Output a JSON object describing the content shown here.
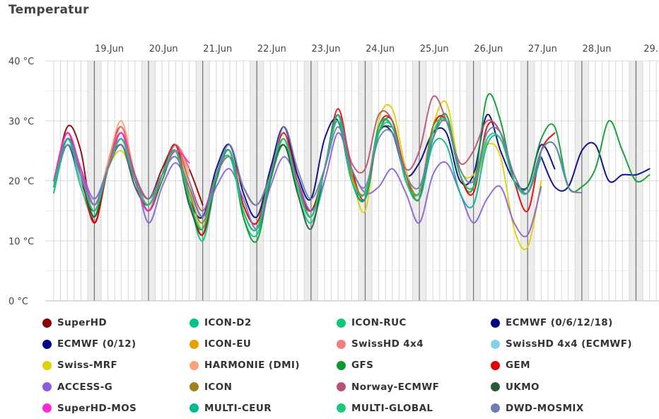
{
  "chart_data": {
    "type": "line",
    "title": "Temperatur",
    "x_tick_labels": [
      "19.Jun",
      "20.Jun",
      "21.Jun",
      "22.Jun",
      "23.Jun",
      "24.Jun",
      "25.Jun",
      "26.Jun",
      "27.Jun",
      "28.Jun",
      "29."
    ],
    "y_tick_labels": [
      "0 °C",
      "10 °C",
      "20 °C",
      "30 °C",
      "40 °C"
    ],
    "ylim": [
      0,
      40
    ],
    "xlim_days": [
      18.0,
      29.2
    ],
    "x_unit": "day of June",
    "grid": true,
    "legend_position": "bottom",
    "series": [
      {
        "name": "SuperHD",
        "color": "#8b0000",
        "x": [
          18.0,
          18.25,
          18.5,
          18.75,
          19.0,
          19.25,
          19.5,
          19.75,
          20.0,
          20.25,
          20.5,
          20.75
        ],
        "y": [
          19,
          29,
          25,
          13,
          23,
          29,
          21,
          17,
          22,
          26,
          22,
          16
        ]
      },
      {
        "name": "ICON-D2",
        "color": "#00c48c",
        "x": [
          18.0,
          18.25,
          18.5,
          18.75,
          19.0,
          19.25,
          19.5,
          19.75,
          20.0,
          20.25,
          20.5,
          20.75,
          21.0,
          21.25,
          21.5,
          21.75,
          22.0,
          22.25,
          22.5,
          22.75,
          23.0
        ],
        "y": [
          18,
          27,
          22,
          14,
          22,
          28,
          21,
          15,
          21,
          26,
          17,
          10,
          20,
          25,
          14,
          11,
          20,
          27,
          18,
          13,
          20
        ]
      },
      {
        "name": "ICON-RUC",
        "color": "#14c678",
        "x": [
          18.0,
          18.25,
          18.5,
          18.75,
          19.0,
          19.25,
          19.5,
          19.75,
          20.0,
          20.25,
          20.5
        ],
        "y": [
          18,
          26,
          19,
          14,
          22,
          26,
          20,
          15,
          21,
          25,
          16
        ]
      },
      {
        "name": "ECMWF (0/6/12/18)",
        "color": "#000080",
        "x": [
          18.0,
          18.25,
          18.5,
          18.75,
          19.0,
          19.25,
          19.5,
          19.75,
          20.0,
          20.25,
          20.5,
          20.75,
          21.0,
          21.25,
          21.5,
          21.75,
          22.0,
          22.25,
          22.5,
          22.75,
          23.0,
          23.25,
          23.5,
          23.75,
          24.0,
          24.25,
          24.5,
          24.75,
          25.0,
          25.25,
          25.5,
          25.75,
          26.0,
          26.25,
          26.5,
          26.75,
          27.0,
          27.25
        ],
        "y": [
          19,
          26,
          20,
          15,
          22,
          27,
          20,
          16,
          21,
          25,
          17,
          14,
          22,
          26,
          18,
          14,
          22,
          29,
          21,
          17,
          27,
          30,
          20,
          18,
          28,
          28,
          21,
          23,
          28,
          28,
          20,
          21,
          31,
          25,
          20,
          19,
          26,
          22
        ]
      },
      {
        "name": "ECMWF (0/12)",
        "color": "#00008b",
        "x": [
          27.0,
          27.25,
          27.5,
          27.75,
          28.0,
          28.25,
          28.5,
          28.75,
          29.0
        ],
        "y": [
          24,
          19,
          19,
          25,
          26,
          20,
          21,
          21,
          22
        ]
      },
      {
        "name": "ICON-EU",
        "color": "#e6a100",
        "x": [
          18.0,
          18.25,
          18.5,
          18.75,
          19.0,
          19.25,
          19.5,
          19.75,
          20.0,
          20.25,
          20.5,
          20.75,
          21.0,
          21.25,
          21.5,
          21.75,
          22.0,
          22.25,
          22.5,
          22.75,
          23.0,
          23.25,
          23.5,
          23.75,
          24.0,
          24.25,
          24.5,
          24.75,
          25.0,
          25.25,
          25.5,
          25.75,
          26.0
        ],
        "y": [
          19,
          27,
          21,
          15,
          22,
          26,
          20,
          16,
          21,
          25,
          17,
          11,
          21,
          25,
          15,
          12,
          21,
          27,
          19,
          14,
          22,
          31,
          21,
          18,
          29,
          29,
          21,
          18,
          29,
          30,
          21,
          19,
          27
        ]
      },
      {
        "name": "SwissHD 4x4",
        "color": "#f08080",
        "x": [
          18.0,
          18.25,
          18.5,
          18.75,
          19.0,
          19.25,
          19.5,
          19.75,
          20.0,
          20.25,
          20.5
        ],
        "y": [
          20,
          28,
          22,
          16,
          22,
          29,
          20,
          16,
          21,
          26,
          22
        ]
      },
      {
        "name": "SwissHD 4x4 (ECMWF)",
        "color": "#87ceeb",
        "x": [
          18.0,
          18.25,
          18.5,
          18.75,
          19.0,
          19.25,
          19.5,
          19.75,
          20.0,
          20.25,
          20.5
        ],
        "y": [
          20,
          27,
          20,
          17,
          22,
          27,
          20,
          16,
          21,
          24,
          18
        ]
      },
      {
        "name": "Swiss-MRF",
        "color": "#e0d000",
        "x": [
          18.0,
          18.25,
          18.5,
          18.75,
          19.0,
          19.25,
          19.5,
          19.75,
          20.0,
          20.25,
          20.5,
          20.75,
          21.0,
          21.25,
          21.5,
          21.75,
          22.0,
          22.25,
          22.5,
          22.75,
          23.0,
          23.25,
          23.5,
          23.75,
          24.0,
          24.25,
          24.5,
          24.75,
          25.0,
          25.25,
          25.5,
          25.75,
          26.0,
          26.25,
          26.5,
          26.75,
          27.0
        ],
        "y": [
          19,
          26,
          21,
          15,
          22,
          25,
          20,
          15,
          20,
          25,
          19,
          12,
          21,
          25,
          16,
          13,
          21,
          27,
          19,
          15,
          22,
          31,
          21,
          15,
          30,
          32,
          22,
          17,
          29,
          33,
          22,
          21,
          26,
          24,
          12,
          9,
          20
        ]
      },
      {
        "name": "HARMONIE (DMI)",
        "color": "#ffa07a",
        "x": [
          18.0,
          18.25,
          18.5,
          18.75,
          19.0,
          19.25,
          19.5,
          19.75,
          20.0,
          20.25,
          20.5
        ],
        "y": [
          20,
          28,
          22,
          16,
          23,
          30,
          21,
          16,
          21,
          26,
          21
        ]
      },
      {
        "name": "GFS",
        "color": "#0a9a32",
        "x": [
          18.0,
          18.25,
          18.5,
          18.75,
          19.0,
          19.25,
          19.5,
          19.75,
          20.0,
          20.25,
          20.5,
          20.75,
          21.0,
          21.25,
          21.5,
          21.75,
          22.0,
          22.25,
          22.5,
          22.75,
          23.0,
          23.25,
          23.5,
          23.75,
          24.0,
          24.25,
          24.5,
          24.75,
          25.0,
          25.25,
          25.5,
          25.75,
          26.0,
          26.25,
          26.5,
          26.75,
          27.0,
          27.25,
          27.5,
          27.75,
          28.0,
          28.25,
          28.5,
          28.75,
          29.0
        ],
        "y": [
          19,
          27,
          21,
          15,
          22,
          27,
          20,
          15,
          20,
          25,
          17,
          11,
          20,
          25,
          14,
          10,
          20,
          26,
          19,
          15,
          22,
          31,
          20,
          17,
          28,
          30,
          20,
          18,
          27,
          31,
          21,
          19,
          34,
          30,
          20,
          19,
          27,
          29,
          19,
          19,
          22,
          30,
          25,
          20,
          21
        ]
      },
      {
        "name": "GEM",
        "color": "#e60000",
        "x": [
          18.0,
          18.25,
          18.5,
          18.75,
          19.0,
          19.25,
          19.5,
          19.75,
          20.0,
          20.25,
          20.5,
          20.75,
          21.0,
          21.25,
          21.5,
          21.75,
          22.0,
          22.25,
          22.5,
          22.75,
          23.0,
          23.25,
          23.5,
          23.75,
          24.0,
          24.25,
          24.5,
          24.75,
          25.0,
          25.25,
          25.5,
          25.75,
          26.0,
          26.25,
          26.5,
          26.75,
          27.0,
          27.25
        ],
        "y": [
          20,
          28,
          21,
          13,
          22,
          28,
          20,
          15,
          21,
          26,
          17,
          11,
          21,
          25,
          16,
          13,
          21,
          28,
          20,
          15,
          22,
          32,
          22,
          17,
          29,
          30,
          21,
          17,
          29,
          30,
          21,
          18,
          29,
          28,
          20,
          15,
          25,
          28
        ]
      },
      {
        "name": "ACCESS-G",
        "color": "#8a5fd6",
        "x": [
          18.0,
          18.25,
          18.5,
          18.75,
          19.0,
          19.25,
          19.5,
          19.75,
          20.0,
          20.25,
          20.5,
          20.75,
          21.0,
          21.25,
          21.5,
          21.75,
          22.0,
          22.25,
          22.5,
          22.75,
          23.0,
          23.25,
          23.5,
          23.75,
          24.0,
          24.25,
          24.5,
          24.75,
          25.0,
          25.25,
          25.5,
          25.75,
          26.0,
          26.25,
          26.5,
          26.75,
          27.0
        ],
        "y": [
          20,
          27,
          22,
          17,
          22,
          27,
          21,
          13,
          19,
          23,
          19,
          14,
          19,
          22,
          17,
          12,
          19,
          24,
          20,
          15,
          20,
          28,
          22,
          18,
          19,
          22,
          18,
          13,
          21,
          23,
          18,
          13,
          17,
          19,
          13,
          11,
          19
        ]
      },
      {
        "name": "ICON",
        "color": "#a08020",
        "x": [
          18.0,
          18.25,
          18.5,
          18.75,
          19.0,
          19.25,
          19.5,
          19.75,
          20.0,
          20.25,
          20.5,
          20.75,
          21.0,
          21.25,
          21.5,
          21.75,
          22.0,
          22.25,
          22.5,
          22.75,
          23.0,
          23.25,
          23.5,
          23.75,
          24.0,
          24.25,
          24.5,
          24.75,
          25.0,
          25.25
        ],
        "y": [
          19,
          26,
          21,
          15,
          22,
          26,
          20,
          16,
          21,
          25,
          18,
          13,
          21,
          25,
          15,
          12,
          21,
          27,
          19,
          14,
          22,
          31,
          21,
          18,
          29,
          29,
          21,
          18,
          29,
          30
        ]
      },
      {
        "name": "Norway-ECMWF",
        "color": "#b85270",
        "x": [
          18.0,
          18.25,
          18.5,
          18.75,
          19.0,
          19.25,
          19.5,
          19.75,
          20.0,
          20.25,
          20.5,
          20.75,
          21.0,
          21.25,
          21.5,
          21.75,
          22.0,
          22.25,
          22.5,
          22.75,
          23.0,
          23.25,
          23.5,
          23.75,
          24.0,
          24.25,
          24.5,
          24.75,
          25.0,
          25.25,
          25.5,
          25.75,
          26.0,
          26.25,
          26.5,
          26.75,
          27.0
        ],
        "y": [
          20,
          27,
          22,
          16,
          22,
          28,
          21,
          17,
          21,
          26,
          20,
          15,
          21,
          24,
          19,
          16,
          21,
          27,
          20,
          14,
          22,
          31,
          23,
          22,
          31,
          30,
          22,
          25,
          34,
          30,
          23,
          25,
          30,
          28,
          21,
          18,
          25
        ]
      },
      {
        "name": "UKMO",
        "color": "#2a5a3a",
        "x": [
          18.0,
          18.25,
          18.5,
          18.75,
          19.0,
          19.25,
          19.5,
          19.75,
          20.0,
          20.25,
          20.5,
          20.75,
          21.0,
          21.25,
          21.5,
          21.75,
          22.0,
          22.25,
          22.5,
          22.75,
          23.0,
          23.25,
          23.5,
          23.75,
          24.0,
          24.25
        ],
        "y": [
          19,
          26,
          21,
          14,
          22,
          26,
          19,
          16,
          21,
          25,
          16,
          12,
          21,
          25,
          15,
          12,
          21,
          26,
          18,
          12,
          22,
          30,
          20,
          17,
          28,
          29
        ]
      },
      {
        "name": "SuperHD-MOS",
        "color": "#ff2ad4",
        "x": [
          18.0,
          18.25,
          18.5,
          18.75,
          19.0,
          19.25,
          19.5,
          19.75,
          20.0,
          20.25,
          20.5
        ],
        "y": [
          20,
          28,
          22,
          16,
          22,
          28,
          20,
          15,
          21,
          25,
          23
        ]
      },
      {
        "name": "MULTI-CEUR",
        "color": "#00b894",
        "x": [
          18.0,
          18.25,
          18.5,
          18.75,
          19.0,
          19.25,
          19.5,
          19.75,
          20.0,
          20.25,
          20.5,
          20.75,
          21.0,
          21.25,
          21.5,
          21.75,
          22.0,
          22.25,
          22.5,
          22.75,
          23.0,
          23.25,
          23.5,
          23.75,
          24.0,
          24.25,
          24.5,
          24.75,
          25.0,
          25.25,
          25.5,
          25.75,
          26.0,
          26.25,
          26.5,
          26.75,
          27.0
        ],
        "y": [
          19,
          27,
          21,
          15,
          22,
          27,
          20,
          16,
          21,
          25,
          17,
          12,
          21,
          24,
          15,
          12,
          21,
          27,
          19,
          14,
          22,
          31,
          20,
          17,
          29,
          29,
          20,
          17,
          26,
          26,
          18,
          16,
          26,
          27,
          20,
          18,
          24
        ]
      },
      {
        "name": "MULTI-GLOBAL",
        "color": "#1ec87a",
        "x": [
          18.0,
          18.25,
          18.5,
          18.75,
          19.0,
          19.25,
          19.5,
          19.75,
          20.0,
          20.25,
          20.5,
          20.75,
          21.0,
          21.25,
          21.5,
          21.75,
          22.0,
          22.25,
          22.5,
          22.75,
          23.0,
          23.25,
          23.5,
          23.75,
          24.0,
          24.25,
          24.5,
          24.75,
          25.0,
          25.25,
          25.5,
          25.75,
          26.0,
          26.25,
          26.5,
          26.75,
          27.0,
          27.25,
          27.5
        ],
        "y": [
          19,
          26,
          21,
          15,
          22,
          27,
          20,
          16,
          21,
          25,
          17,
          12,
          21,
          25,
          15,
          12,
          21,
          27,
          19,
          14,
          22,
          30,
          20,
          18,
          28,
          29,
          20,
          18,
          28,
          30,
          21,
          19,
          27,
          27,
          20,
          18,
          25,
          26,
          19
        ]
      },
      {
        "name": "DWD-MOSMIX",
        "color": "#6b7fb0",
        "x": [
          18.0,
          18.25,
          18.5,
          18.75,
          19.0,
          19.25,
          19.5,
          19.75,
          20.0,
          20.25,
          20.5,
          20.75,
          21.0,
          21.25,
          21.5,
          21.75,
          22.0,
          22.25,
          22.5,
          22.75,
          23.0,
          23.25,
          23.5,
          23.75,
          24.0,
          24.25,
          24.5,
          24.75,
          25.0,
          25.25,
          25.5,
          25.75,
          26.0,
          26.25,
          26.5,
          26.75,
          27.0,
          27.25,
          27.5,
          27.75
        ],
        "y": [
          20,
          26,
          21,
          16,
          22,
          26,
          20,
          17,
          21,
          24,
          19,
          14,
          21,
          26,
          19,
          16,
          21,
          29,
          22,
          17,
          22,
          29,
          22,
          19,
          27,
          28,
          21,
          19,
          27,
          30,
          22,
          20,
          28,
          28,
          21,
          18,
          25,
          26,
          19,
          18
        ]
      }
    ]
  }
}
